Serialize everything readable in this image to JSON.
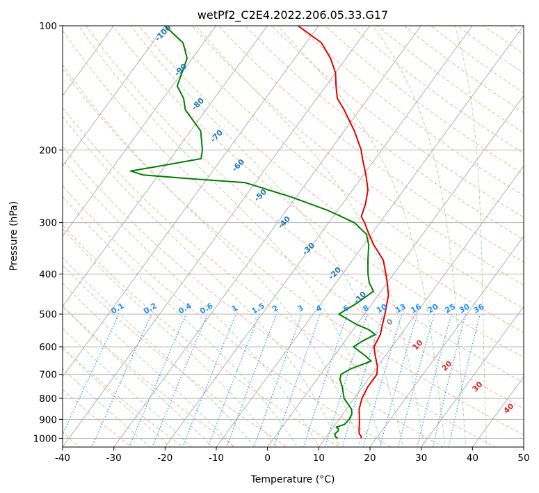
{
  "chart_data": {
    "type": "line",
    "subtype": "skew-t log-p",
    "title": "wetPf2_C2E4.2022.206.05.33.G17",
    "xlabel": "Temperature (°C)",
    "ylabel": "Pressure (hPa)",
    "xlim": [
      -40,
      50
    ],
    "ylim": [
      1050,
      100
    ],
    "y_scale": "log",
    "grid": true,
    "x_ticks": [
      "-40",
      "-30",
      "-20",
      "-10",
      "0",
      "10",
      "20",
      "30",
      "40",
      "50"
    ],
    "y_ticks": [
      "100",
      "200",
      "300",
      "400",
      "500",
      "600",
      "700",
      "800",
      "900",
      "1000"
    ],
    "series": [
      {
        "color": "#e00000",
        "points": [
          [
            1000,
            17.0
          ],
          [
            990,
            16.8
          ],
          [
            975,
            16.0
          ],
          [
            950,
            15.3
          ],
          [
            925,
            14.7
          ],
          [
            900,
            14.0
          ],
          [
            850,
            12.5
          ],
          [
            800,
            11.5
          ],
          [
            750,
            11.0
          ],
          [
            700,
            11.0
          ],
          [
            670,
            10.0
          ],
          [
            630,
            8.0
          ],
          [
            600,
            6.5
          ],
          [
            560,
            6.0
          ],
          [
            530,
            5.0
          ],
          [
            500,
            4.0
          ],
          [
            450,
            2.0
          ],
          [
            420,
            0.0
          ],
          [
            400,
            -1.5
          ],
          [
            370,
            -4.0
          ],
          [
            340,
            -8.0
          ],
          [
            320,
            -10.5
          ],
          [
            300,
            -13.0
          ],
          [
            290,
            -14.5
          ],
          [
            270,
            -15.5
          ],
          [
            250,
            -17.0
          ],
          [
            230,
            -19.5
          ],
          [
            210,
            -22.5
          ],
          [
            200,
            -24.0
          ],
          [
            180,
            -28.0
          ],
          [
            160,
            -33.0
          ],
          [
            150,
            -36.0
          ],
          [
            140,
            -38.0
          ],
          [
            130,
            -40.0
          ],
          [
            120,
            -43.0
          ],
          [
            110,
            -47.0
          ],
          [
            100,
            -54.0
          ]
        ]
      },
      {
        "color": "#008000",
        "points": [
          [
            1000,
            12.5
          ],
          [
            990,
            11.7
          ],
          [
            975,
            11.3
          ],
          [
            960,
            11.5
          ],
          [
            950,
            11.3
          ],
          [
            940,
            10.6
          ],
          [
            925,
            11.8
          ],
          [
            900,
            12.0
          ],
          [
            875,
            11.8
          ],
          [
            850,
            11.0
          ],
          [
            800,
            8.0
          ],
          [
            750,
            6.0
          ],
          [
            720,
            4.5
          ],
          [
            700,
            4.0
          ],
          [
            680,
            5.0
          ],
          [
            650,
            8.0
          ],
          [
            630,
            6.0
          ],
          [
            600,
            2.5
          ],
          [
            580,
            3.5
          ],
          [
            560,
            5.0
          ],
          [
            545,
            3.0
          ],
          [
            530,
            0.0
          ],
          [
            500,
            -5.0
          ],
          [
            470,
            -3.0
          ],
          [
            440,
            -1.5
          ],
          [
            420,
            -3.5
          ],
          [
            400,
            -5.0
          ],
          [
            370,
            -7.0
          ],
          [
            340,
            -9.0
          ],
          [
            320,
            -11.0
          ],
          [
            300,
            -15.0
          ],
          [
            280,
            -22.0
          ],
          [
            260,
            -31.0
          ],
          [
            240,
            -42.0
          ],
          [
            235,
            -53.0
          ],
          [
            230,
            -63.0
          ],
          [
            225,
            -66.0
          ],
          [
            220,
            -62.0
          ],
          [
            210,
            -54.0
          ],
          [
            200,
            -55.0
          ],
          [
            180,
            -58.0
          ],
          [
            160,
            -64.0
          ],
          [
            150,
            -66.0
          ],
          [
            140,
            -69.0
          ],
          [
            120,
            -71.0
          ],
          [
            110,
            -74.0
          ],
          [
            100,
            -80.0
          ]
        ]
      }
    ],
    "dry_adiabat_labels": [
      "-100",
      "-90",
      "-80",
      "-70",
      "-60",
      "-50",
      "-40",
      "-30",
      "-20",
      "-10"
    ],
    "moist_adiabat_labels": [
      "0",
      "10",
      "20",
      "30",
      "40"
    ],
    "mixing_ratio_labels": [
      "0.1",
      "0.2",
      "0.4",
      "0.6",
      "1",
      "1.5",
      "2",
      "3",
      "4",
      "6",
      "8",
      "10",
      "13",
      "16",
      "20",
      "25",
      "30",
      "36"
    ],
    "mixing_ratio_values": [
      0.1,
      0.2,
      0.4,
      0.6,
      1,
      1.5,
      2,
      3,
      4,
      6,
      8,
      10,
      13,
      16,
      20,
      25,
      30,
      36
    ]
  },
  "colors": {
    "temperature": "#e00000",
    "dewpoint": "#008000",
    "isotherm": "#aaaaaa",
    "dry_adiabat": "#f4a582",
    "moist_adiabat": "#a6d4a0",
    "mixing_ratio": "#1f8fff"
  }
}
